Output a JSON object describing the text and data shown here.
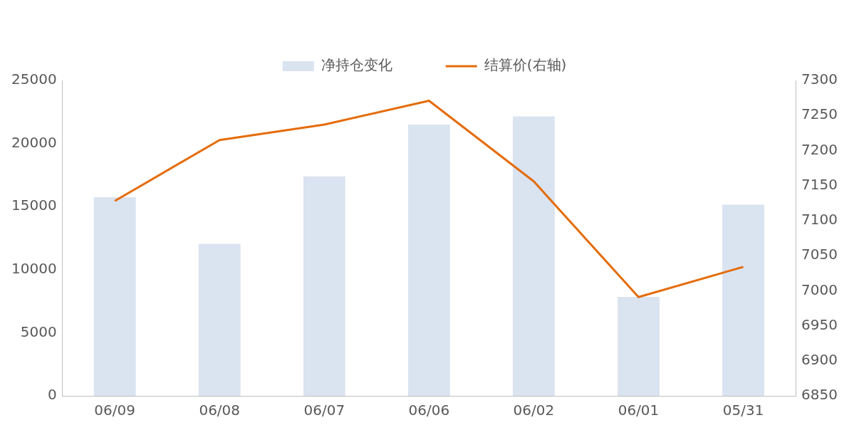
{
  "chart_data": {
    "type": "bar",
    "categories": [
      "06/09",
      "06/08",
      "06/07",
      "06/06",
      "06/02",
      "06/01",
      "05/31"
    ],
    "series": [
      {
        "name": "净持仓变化",
        "color": "#dae3f0",
        "values": [
          15750,
          12050,
          17400,
          21500,
          22150,
          7850,
          15150
        ]
      },
      {
        "name": "结算价(右轴)",
        "type": "line",
        "axis": "y2",
        "color": "#e46c0a",
        "values": [
          7128,
          7215,
          7237,
          7271,
          7156,
          6991,
          7034
        ]
      }
    ],
    "ylim": [
      0,
      25000
    ],
    "yticks": [
      0,
      5000,
      10000,
      15000,
      20000,
      25000
    ],
    "y2lim": [
      6850,
      7300
    ],
    "y2ticks": [
      6850,
      6900,
      6950,
      7000,
      7050,
      7100,
      7150,
      7200,
      7250,
      7300
    ],
    "grid": false,
    "legend": "top",
    "marker": "none",
    "line_style": "solid"
  }
}
